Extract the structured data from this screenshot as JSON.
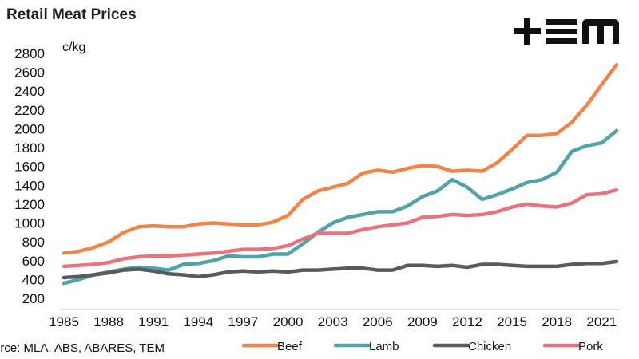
{
  "title": "Retail Meat Prices",
  "source": "urce: MLA, ABS, ABARES, TEM",
  "logo": {
    "text": "+EM"
  },
  "chart_data": {
    "type": "line",
    "title": "Retail Meat Prices",
    "ylabel": "c/kg",
    "xlabel": "",
    "ylim": [
      200,
      2800
    ],
    "xlim": [
      1985,
      2022
    ],
    "yticks": [
      200,
      400,
      600,
      800,
      1000,
      1200,
      1400,
      1600,
      1800,
      2000,
      2200,
      2400,
      2600,
      2800
    ],
    "xticks": [
      1985,
      1988,
      1991,
      1994,
      1997,
      2000,
      2003,
      2006,
      2009,
      2012,
      2015,
      2018,
      2021
    ],
    "grid": false,
    "legend_position": "bottom",
    "x": [
      1985,
      1986,
      1987,
      1988,
      1989,
      1990,
      1991,
      1992,
      1993,
      1994,
      1995,
      1996,
      1997,
      1998,
      1999,
      2000,
      2001,
      2002,
      2003,
      2004,
      2005,
      2006,
      2007,
      2008,
      2009,
      2010,
      2011,
      2012,
      2013,
      2014,
      2015,
      2016,
      2017,
      2018,
      2019,
      2020,
      2021,
      2022
    ],
    "series": [
      {
        "name": "Beef",
        "color": "#f0854a",
        "values": [
          680,
          700,
          740,
          800,
          900,
          960,
          970,
          960,
          960,
          990,
          1000,
          990,
          980,
          980,
          1010,
          1080,
          1250,
          1340,
          1380,
          1420,
          1530,
          1560,
          1540,
          1580,
          1610,
          1600,
          1550,
          1560,
          1550,
          1640,
          1780,
          1930,
          1930,
          1950,
          2070,
          2250,
          2470,
          2680
        ]
      },
      {
        "name": "Lamb",
        "color": "#4fa3ac",
        "values": [
          360,
          400,
          450,
          480,
          510,
          530,
          520,
          500,
          560,
          570,
          600,
          650,
          640,
          640,
          670,
          670,
          780,
          900,
          1000,
          1060,
          1090,
          1120,
          1120,
          1180,
          1280,
          1340,
          1460,
          1380,
          1250,
          1300,
          1360,
          1430,
          1460,
          1540,
          1760,
          1820,
          1850,
          1980
        ]
      },
      {
        "name": "Chicken",
        "color": "#585a5e",
        "values": [
          420,
          430,
          450,
          470,
          500,
          510,
          490,
          460,
          450,
          430,
          450,
          480,
          490,
          480,
          490,
          480,
          500,
          500,
          510,
          520,
          520,
          500,
          500,
          550,
          550,
          540,
          550,
          530,
          560,
          560,
          550,
          540,
          540,
          540,
          560,
          570,
          570,
          590
        ]
      },
      {
        "name": "Pork",
        "color": "#e8737e",
        "values": [
          540,
          550,
          560,
          580,
          620,
          640,
          650,
          650,
          660,
          670,
          680,
          700,
          720,
          720,
          730,
          760,
          830,
          890,
          890,
          890,
          930,
          960,
          980,
          1000,
          1060,
          1070,
          1090,
          1080,
          1090,
          1120,
          1170,
          1200,
          1180,
          1170,
          1210,
          1300,
          1310,
          1350
        ]
      }
    ]
  }
}
